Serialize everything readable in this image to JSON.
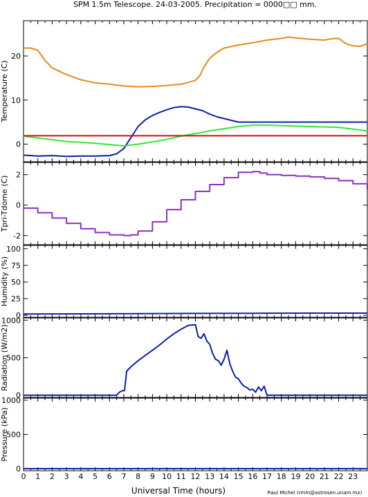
{
  "title": "SPM 1.5m Telescope. 24-03-2005. Precipitation = 0000□□ mm.",
  "xlabel": "Universal Time (hours)",
  "credit": "Raul Michel (rmm@astrosen.unam.mx)",
  "colors": {
    "orange": "#e8881a",
    "blue": "#0a1ea8",
    "green": "#32e632",
    "red": "#d01010",
    "purple": "#8a2fc4",
    "axis": "#000000"
  },
  "chart_data": [
    {
      "type": "line",
      "ylabel": "Temperature (C)",
      "xlim": [
        0,
        24
      ],
      "ylim": [
        -4,
        28
      ],
      "yticks": [
        0,
        10,
        20
      ],
      "xticks": [
        0,
        1,
        2,
        3,
        4,
        5,
        6,
        7,
        8,
        9,
        10,
        11,
        12,
        13,
        14,
        15,
        16,
        17,
        18,
        19,
        20,
        21,
        22,
        23
      ],
      "series": [
        {
          "color": "orange",
          "style": "line",
          "x": [
            0,
            0.5,
            1,
            1.5,
            2,
            3,
            4,
            5,
            6,
            7,
            8,
            9,
            10,
            11,
            11.5,
            12,
            12.3,
            12.6,
            13,
            13.5,
            14,
            15,
            16,
            17,
            18,
            18.5,
            19,
            20,
            21,
            21.5,
            22,
            22.5,
            23,
            23.5,
            24
          ],
          "y": [
            21.8,
            21.8,
            21.3,
            19.0,
            17.3,
            15.8,
            14.6,
            13.9,
            13.6,
            13.2,
            13.0,
            13.1,
            13.3,
            13.6,
            14.0,
            14.5,
            15.5,
            17.5,
            19.5,
            20.8,
            21.8,
            22.5,
            23.0,
            23.6,
            24.0,
            24.3,
            24.1,
            23.8,
            23.6,
            23.9,
            24.0,
            22.8,
            22.3,
            22.2,
            22.8
          ]
        },
        {
          "color": "blue",
          "style": "line",
          "x": [
            0,
            1,
            2,
            3,
            4,
            5,
            6,
            6.5,
            7,
            7.5,
            8,
            8.5,
            9,
            9.5,
            10,
            10.5,
            11,
            11.5,
            12,
            12.5,
            13,
            13.5,
            14,
            14.5,
            15,
            16,
            17,
            18,
            19,
            20,
            21,
            22,
            23,
            24
          ],
          "y": [
            -2.5,
            -2.7,
            -2.6,
            -2.8,
            -2.7,
            -2.7,
            -2.6,
            -2.2,
            -1.0,
            1.5,
            4.0,
            5.5,
            6.5,
            7.2,
            7.8,
            8.3,
            8.5,
            8.4,
            8.0,
            7.6,
            6.8,
            6.2,
            5.8,
            5.4,
            5.0,
            5.0,
            5.0,
            5.0,
            5.0,
            5.0,
            5.0,
            5.0,
            5.0,
            5.0
          ]
        },
        {
          "color": "green",
          "style": "line",
          "x": [
            0,
            1,
            2,
            3,
            4,
            5,
            6,
            7,
            7.5,
            8,
            9,
            10,
            11,
            12,
            13,
            14,
            15,
            16,
            17,
            18,
            19,
            20,
            21,
            22,
            23,
            24
          ],
          "y": [
            1.8,
            1.4,
            1.0,
            0.6,
            0.4,
            0.2,
            -0.1,
            -0.4,
            -0.2,
            0.0,
            0.5,
            1.1,
            1.8,
            2.4,
            3.0,
            3.5,
            4.0,
            4.3,
            4.3,
            4.2,
            4.1,
            4.0,
            3.9,
            3.8,
            3.4,
            3.0
          ]
        },
        {
          "color": "red",
          "style": "line",
          "x": [
            0,
            24
          ],
          "y": [
            1.9,
            1.9
          ]
        }
      ]
    },
    {
      "type": "line",
      "ylabel": "Tpri-Tdome (C)",
      "xlim": [
        0,
        24
      ],
      "ylim": [
        -2.6,
        2.8
      ],
      "yticks": [
        -2,
        0,
        2
      ],
      "series": [
        {
          "color": "purple",
          "style": "step",
          "x": [
            0,
            1,
            2,
            3,
            4,
            5,
            6,
            7,
            7.5,
            8,
            9,
            10,
            11,
            12,
            13,
            14,
            15,
            16,
            16.5,
            17,
            18,
            19,
            20,
            21,
            22,
            23,
            24
          ],
          "y": [
            -0.2,
            -0.5,
            -0.85,
            -1.2,
            -1.55,
            -1.8,
            -1.95,
            -2.0,
            -1.95,
            -1.7,
            -1.1,
            -0.3,
            0.35,
            0.9,
            1.35,
            1.8,
            2.15,
            2.2,
            2.1,
            2.0,
            1.95,
            1.9,
            1.85,
            1.75,
            1.6,
            1.4,
            1.05
          ]
        }
      ]
    },
    {
      "type": "line",
      "ylabel": "Humidity (%)",
      "xlim": [
        0,
        24
      ],
      "ylim": [
        -3,
        105
      ],
      "yticks": [
        0,
        25,
        50,
        75,
        100
      ],
      "series": [
        {
          "color": "blue",
          "style": "line",
          "x": [
            0,
            4,
            8,
            12,
            16,
            20,
            24
          ],
          "y": [
            2.0,
            2.2,
            2.4,
            2.8,
            3.0,
            3.2,
            3.2
          ]
        }
      ]
    },
    {
      "type": "line",
      "ylabel": "Radiation (W/m2)",
      "xlim": [
        0,
        24
      ],
      "ylim": [
        -30,
        1030
      ],
      "yticks": [
        0,
        500,
        1000
      ],
      "series": [
        {
          "color": "blue",
          "style": "line",
          "x": [
            0,
            6.5,
            6.7,
            6.9,
            7.05,
            7.2,
            7.5,
            8,
            8.5,
            9,
            9.5,
            10,
            10.5,
            11,
            11.5,
            12,
            12.2,
            12.4,
            12.6,
            12.8,
            13,
            13.2,
            13.4,
            13.6,
            13.8,
            14,
            14.2,
            14.4,
            14.6,
            14.8,
            15,
            15.2,
            15.4,
            15.6,
            15.8,
            16,
            16.2,
            16.4,
            16.6,
            16.8,
            17,
            17.2,
            17.4,
            24
          ],
          "y": [
            0,
            0,
            40,
            60,
            60,
            320,
            380,
            460,
            530,
            600,
            670,
            750,
            820,
            880,
            930,
            940,
            780,
            760,
            820,
            720,
            680,
            560,
            480,
            460,
            400,
            480,
            600,
            420,
            320,
            240,
            220,
            160,
            120,
            100,
            70,
            80,
            40,
            110,
            60,
            120,
            0,
            0,
            0,
            0
          ]
        }
      ]
    },
    {
      "type": "line",
      "ylabel": "Pressure (kPa)",
      "xlim": [
        0,
        24
      ],
      "ylim": [
        -30,
        1030
      ],
      "yticks": [
        0,
        500,
        1000
      ],
      "series": [
        {
          "color": "blue",
          "style": "line",
          "x": [
            0,
            24
          ],
          "y": [
            0,
            0
          ]
        }
      ]
    }
  ]
}
